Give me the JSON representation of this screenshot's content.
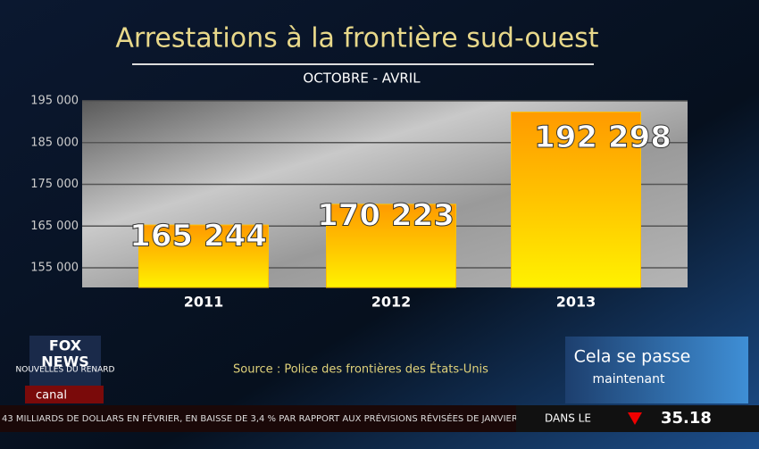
{
  "chart_data": {
    "type": "bar",
    "title": "Arrestations à la frontière sud-ouest",
    "subtitle": "OCTOBRE - AVRIL",
    "categories": [
      "2011",
      "2012",
      "2013"
    ],
    "values": [
      165244,
      170223,
      192298
    ],
    "value_labels": [
      "165 244",
      "170 223",
      "192 298"
    ],
    "color": "#ffc000",
    "ylim": [
      150300,
      195000
    ],
    "yticks": [
      {
        "value": 155000,
        "label": "155 000"
      },
      {
        "value": 165000,
        "label": "165 000"
      },
      {
        "value": 175000,
        "label": "175 000"
      },
      {
        "value": 185000,
        "label": "185 000"
      },
      {
        "value": 195000,
        "label": "195 000"
      }
    ],
    "grid": true,
    "source": "Source : Police des frontières des États-Unis"
  },
  "logo": {
    "top": "FOX",
    "middle": "NEWS",
    "overlay": "NOUVELLES DU RENARD",
    "channel": "canal"
  },
  "now_box": {
    "line1": "Cela se passe",
    "line2": "maintenant"
  },
  "ticker": {
    "text": "43 MILLIARDS DE DOLLARS EN FÉVRIER, EN BAISSE DE 3,4 % PAR RAPPORT AUX PRÉVISIONS RÉVISÉES DE JANVIER",
    "label": "DANS LE",
    "value": "35.18"
  }
}
